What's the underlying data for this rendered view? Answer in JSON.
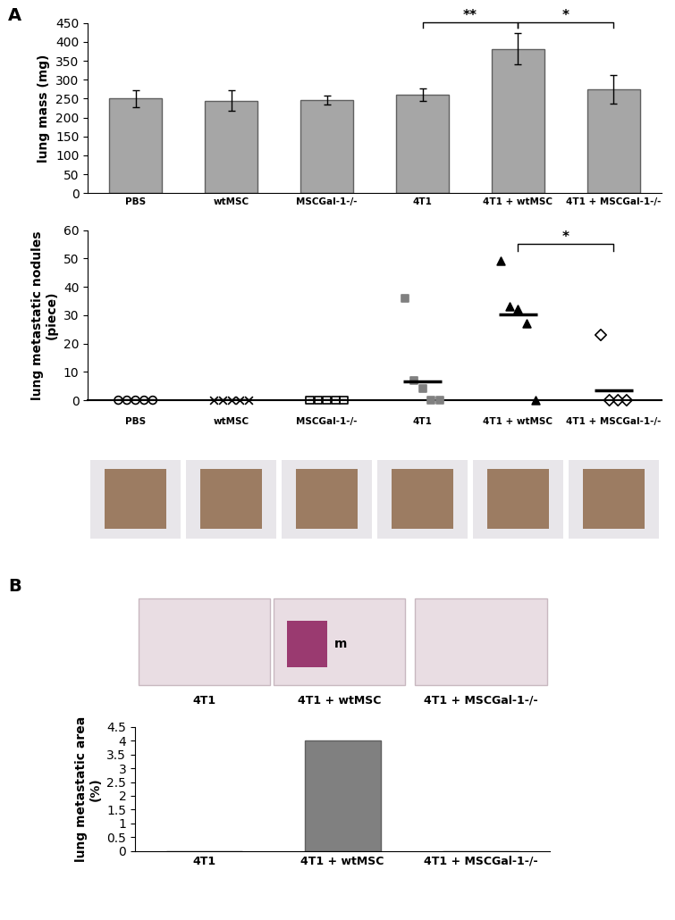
{
  "panels": [
    "A",
    "B"
  ],
  "chart_data": [
    {
      "type": "bar",
      "ylabel": "lung mass (mg)",
      "categories": [
        "PBS",
        "wtMSC",
        "MSCGal-1-/-",
        "4T1",
        "4T1 + wtMSC",
        "4T1 + MSCGal-1-/-"
      ],
      "values": [
        250,
        245,
        247,
        260,
        382,
        275
      ],
      "errors": [
        22,
        28,
        12,
        17,
        42,
        38
      ],
      "color": "#a6a6a6",
      "ylim": [
        0,
        450
      ],
      "yticks": [
        0,
        50,
        100,
        150,
        200,
        250,
        300,
        350,
        400,
        450
      ],
      "significance": [
        {
          "between": [
            "4T1",
            "4T1 + wtMSC"
          ],
          "label": "**"
        },
        {
          "between": [
            "4T1 + wtMSC",
            "4T1 + MSCGal-1-/-"
          ],
          "label": "*"
        }
      ]
    },
    {
      "type": "scatter",
      "ylabel": "lung metastatic nodules\n(piece)",
      "series": [
        {
          "name": "PBS",
          "marker": "circle_open",
          "color": "#000000",
          "values": [
            0,
            0,
            0,
            0,
            0
          ],
          "mean": 0
        },
        {
          "name": "wtMSC",
          "marker": "x",
          "color": "#000000",
          "values": [
            0,
            0,
            0,
            0,
            0
          ],
          "mean": 0
        },
        {
          "name": "MSCGal-1-/-",
          "marker": "square_open",
          "color": "#000000",
          "values": [
            0,
            0,
            0,
            0,
            0
          ],
          "mean": 0
        },
        {
          "name": "4T1",
          "marker": "square",
          "color": "#808080",
          "values": [
            36,
            7,
            4,
            0,
            0
          ],
          "mean": 6.5
        },
        {
          "name": "4T1 + wtMSC",
          "marker": "triangle",
          "color": "#000000",
          "values": [
            49,
            33,
            32,
            27,
            0
          ],
          "mean": 30.3
        },
        {
          "name": "4T1 + MSCGal-1-/-",
          "marker": "diamond_open",
          "color": "#000000",
          "values": [
            23,
            0,
            0,
            0
          ],
          "mean": 3.5
        }
      ],
      "ylim": [
        0,
        60
      ],
      "yticks": [
        0,
        10,
        20,
        30,
        40,
        50,
        60
      ],
      "significance": [
        {
          "between": [
            "4T1 + wtMSC",
            "4T1 + MSCGal-1-/-"
          ],
          "label": "*"
        }
      ]
    },
    {
      "type": "bar",
      "ylabel": "lung metastatic area\n(%)",
      "categories": [
        "4T1",
        "4T1 + wtMSC",
        "4T1 + MSCGal-1-/-"
      ],
      "values": [
        0,
        4,
        0
      ],
      "color": "#808080",
      "ylim": [
        0,
        4.5
      ],
      "yticks": [
        0,
        0.5,
        1,
        1.5,
        2,
        2.5,
        3,
        3.5,
        4,
        4.5
      ]
    }
  ],
  "histology": {
    "captions": [
      "4T1",
      "4T1 + wtMSC",
      "4T1 + MSCGal-1-/-"
    ],
    "annotation": "m"
  }
}
